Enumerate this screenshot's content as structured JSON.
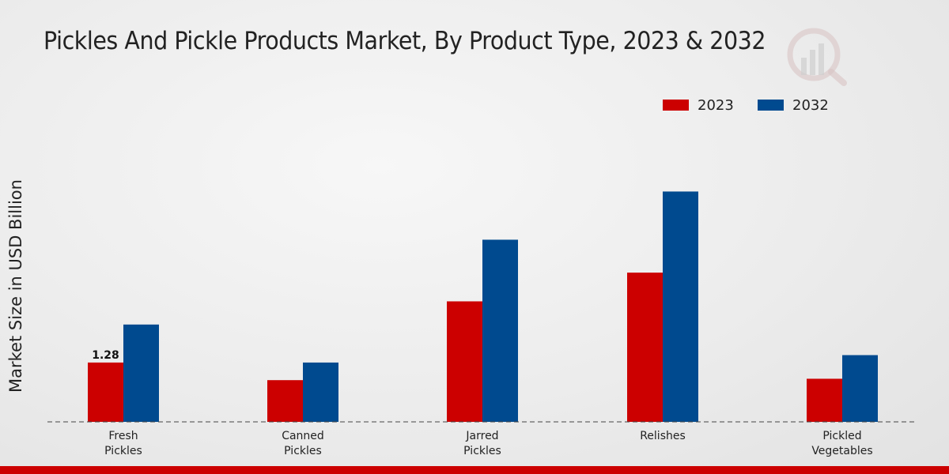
{
  "chart_data": {
    "type": "bar",
    "title": "Pickles And Pickle Products Market, By Product Type, 2023 & 2032",
    "xlabel": "",
    "ylabel": "Market Size in USD Billion",
    "categories": [
      [
        "Fresh",
        "Pickles"
      ],
      [
        "Canned",
        "Pickles"
      ],
      [
        "Jarred",
        "Pickles"
      ],
      [
        "Relishes"
      ],
      [
        "Pickled",
        "Vegetables"
      ]
    ],
    "series": [
      {
        "name": "2023",
        "color": "#cc0000",
        "values": [
          1.28,
          0.9,
          2.6,
          3.22,
          0.93
        ]
      },
      {
        "name": "2032",
        "color": "#004a8f",
        "values": [
          2.1,
          1.28,
          3.93,
          4.97,
          1.44
        ]
      }
    ],
    "data_labels": [
      {
        "series": 0,
        "index": 0,
        "text": "1.28"
      }
    ],
    "ylim": [
      0,
      7.5
    ],
    "legend_position": "top-right",
    "grid": false
  }
}
